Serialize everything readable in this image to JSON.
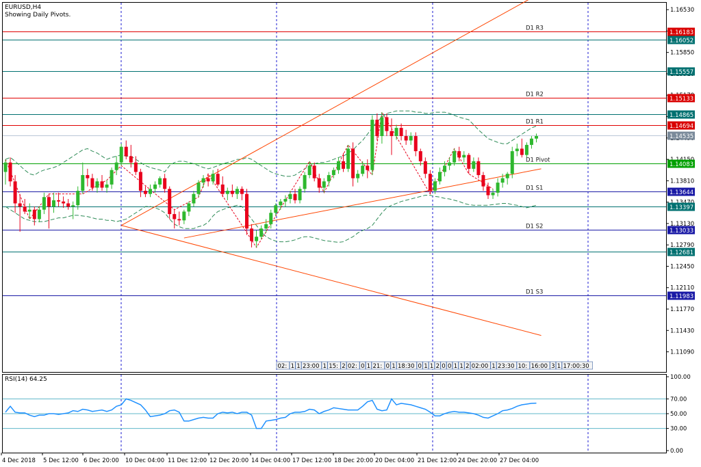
{
  "header": {
    "symbol": "EURUSD,H4",
    "subtitle": "Showing Daily Pivots."
  },
  "rsi_header": "RSI(14) 64.25",
  "colors": {
    "bull": "#2eb82e",
    "bear": "#e8001c",
    "resistance_line": "#e00000",
    "support_line": "#1a1aa6",
    "pivot_line": "#00a000",
    "mid_line": "#007070",
    "rsi_line": "#1e90ff",
    "trend_line": "#ff4500",
    "grid": "#1a1ad0"
  },
  "chart_data": [
    {
      "type": "candlestick",
      "title": "EURUSD,H4",
      "ylim": [
        1.1077,
        1.1664
      ],
      "y_ticks": [
        "1.16530",
        "1.16190",
        "1.15850",
        "1.15510",
        "1.15170",
        "1.14830",
        "1.14490",
        "1.14150",
        "1.13810",
        "1.13470",
        "1.13130",
        "1.12790",
        "1.12450",
        "1.12110",
        "1.11770",
        "1.11430",
        "1.11090"
      ],
      "x_ticks": [
        "4 Dec 2018",
        "5 Dec 12:00",
        "6 Dec 20:00",
        "10 Dec 04:00",
        "11 Dec 12:00",
        "12 Dec 20:00",
        "14 Dec 04:00",
        "17 Dec 12:00",
        "18 Dec 20:00",
        "20 Dec 04:00",
        "21 Dec 12:00",
        "24 Dec 20:00",
        "27 Dec 04:00"
      ],
      "pivot_levels": [
        {
          "label": "D1 R3",
          "value": 1.16183,
          "tag": "1.16183",
          "kind": "resistance"
        },
        {
          "label": "",
          "value": 1.16052,
          "tag": "1.16052",
          "kind": "mid"
        },
        {
          "label": "",
          "value": 1.15557,
          "tag": "1.15557",
          "kind": "mid"
        },
        {
          "label": "D1 R2",
          "value": 1.15133,
          "tag": "1.15133",
          "kind": "resistance"
        },
        {
          "label": "",
          "value": 1.14865,
          "tag": "1.14865",
          "kind": "mid"
        },
        {
          "label": "D1 R1",
          "value": 1.14694,
          "tag": "1.14694",
          "kind": "resistance"
        },
        {
          "label": "",
          "value": 1.14535,
          "tag": "1.14535",
          "kind": "price"
        },
        {
          "label": "D1 Pivot",
          "value": 1.14083,
          "tag": "1.14083",
          "kind": "pivot"
        },
        {
          "label": "D1 S1",
          "value": 1.13644,
          "tag": "1.13644",
          "kind": "support"
        },
        {
          "label": "",
          "value": 1.13397,
          "tag": "1.13397",
          "kind": "mid"
        },
        {
          "label": "D1 S2",
          "value": 1.13033,
          "tag": "1.13033",
          "kind": "support"
        },
        {
          "label": "",
          "value": 1.12681,
          "tag": "1.12681",
          "kind": "mid"
        },
        {
          "label": "D1 S3",
          "value": 1.11983,
          "tag": "1.11983",
          "kind": "support"
        }
      ],
      "ohlc": [
        [
          1.1395,
          1.1415,
          1.1375,
          1.141
        ],
        [
          1.141,
          1.1418,
          1.1372,
          1.138
        ],
        [
          1.138,
          1.139,
          1.133,
          1.1345
        ],
        [
          1.1345,
          1.136,
          1.13,
          1.134
        ],
        [
          1.134,
          1.1352,
          1.1328,
          1.1332
        ],
        [
          1.1332,
          1.1345,
          1.132,
          1.1335
        ],
        [
          1.1335,
          1.134,
          1.131,
          1.132
        ],
        [
          1.132,
          1.134,
          1.1315,
          1.1335
        ],
        [
          1.1335,
          1.1362,
          1.1328,
          1.1355
        ],
        [
          1.1355,
          1.136,
          1.1305,
          1.134
        ],
        [
          1.134,
          1.1362,
          1.133,
          1.135
        ],
        [
          1.135,
          1.1362,
          1.134,
          1.1348
        ],
        [
          1.1348,
          1.1356,
          1.1338,
          1.1345
        ],
        [
          1.1345,
          1.1352,
          1.1335,
          1.134
        ],
        [
          1.134,
          1.1348,
          1.132,
          1.1342
        ],
        [
          1.1342,
          1.1372,
          1.1335,
          1.1365
        ],
        [
          1.1365,
          1.141,
          1.136,
          1.139
        ],
        [
          1.139,
          1.14,
          1.1372,
          1.1385
        ],
        [
          1.1385,
          1.1392,
          1.1365,
          1.137
        ],
        [
          1.137,
          1.1385,
          1.1362,
          1.138
        ],
        [
          1.138,
          1.139,
          1.1365,
          1.137
        ],
        [
          1.137,
          1.1382,
          1.1362,
          1.1375
        ],
        [
          1.1375,
          1.1402,
          1.1368,
          1.1398
        ],
        [
          1.1398,
          1.142,
          1.139,
          1.141
        ],
        [
          1.141,
          1.144,
          1.1405,
          1.1435
        ],
        [
          1.1435,
          1.1445,
          1.1415,
          1.142
        ],
        [
          1.142,
          1.1438,
          1.1402,
          1.141
        ],
        [
          1.141,
          1.142,
          1.139,
          1.1395
        ],
        [
          1.1395,
          1.14,
          1.1355,
          1.1365
        ],
        [
          1.1365,
          1.1372,
          1.1355,
          1.136
        ],
        [
          1.136,
          1.1375,
          1.1355,
          1.1368
        ],
        [
          1.1368,
          1.138,
          1.1362,
          1.1375
        ],
        [
          1.1375,
          1.1388,
          1.137,
          1.1385
        ],
        [
          1.1385,
          1.1392,
          1.1362,
          1.1368
        ],
        [
          1.1368,
          1.1372,
          1.132,
          1.1328
        ],
        [
          1.1328,
          1.1335,
          1.1305,
          1.132
        ],
        [
          1.132,
          1.1332,
          1.131,
          1.1318
        ],
        [
          1.1318,
          1.1335,
          1.1312,
          1.1332
        ],
        [
          1.1332,
          1.1348,
          1.1325,
          1.1345
        ],
        [
          1.1345,
          1.1365,
          1.134,
          1.136
        ],
        [
          1.136,
          1.1382,
          1.1355,
          1.1378
        ],
        [
          1.1378,
          1.139,
          1.137,
          1.1385
        ],
        [
          1.1385,
          1.1392,
          1.1372,
          1.138
        ],
        [
          1.138,
          1.1398,
          1.1375,
          1.1392
        ],
        [
          1.1392,
          1.14,
          1.1372,
          1.1375
        ],
        [
          1.1375,
          1.1388,
          1.1355,
          1.136
        ],
        [
          1.136,
          1.137,
          1.135,
          1.1365
        ],
        [
          1.1365,
          1.1375,
          1.1355,
          1.136
        ],
        [
          1.136,
          1.1372,
          1.1352,
          1.1368
        ],
        [
          1.1368,
          1.1372,
          1.135,
          1.136
        ],
        [
          1.136,
          1.1368,
          1.1295,
          1.1305
        ],
        [
          1.1305,
          1.1312,
          1.1275,
          1.1285
        ],
        [
          1.1285,
          1.1302,
          1.1275,
          1.1292
        ],
        [
          1.1292,
          1.131,
          1.1288,
          1.1305
        ],
        [
          1.1305,
          1.132,
          1.1298,
          1.1312
        ],
        [
          1.1312,
          1.1335,
          1.1305,
          1.133
        ],
        [
          1.133,
          1.1345,
          1.1325,
          1.1342
        ],
        [
          1.1342,
          1.1352,
          1.1335,
          1.1348
        ],
        [
          1.1348,
          1.1358,
          1.134,
          1.1352
        ],
        [
          1.1352,
          1.1365,
          1.1345,
          1.136
        ],
        [
          1.136,
          1.1368,
          1.1345,
          1.135
        ],
        [
          1.135,
          1.1372,
          1.1345,
          1.1368
        ],
        [
          1.1368,
          1.1395,
          1.1362,
          1.139
        ],
        [
          1.139,
          1.1412,
          1.1385,
          1.1405
        ],
        [
          1.1405,
          1.141,
          1.138,
          1.1385
        ],
        [
          1.1385,
          1.1392,
          1.1362,
          1.137
        ],
        [
          1.137,
          1.1385,
          1.1362,
          1.138
        ],
        [
          1.138,
          1.1395,
          1.1372,
          1.139
        ],
        [
          1.139,
          1.1402,
          1.1385,
          1.1398
        ],
        [
          1.1398,
          1.1418,
          1.1392,
          1.1412
        ],
        [
          1.1412,
          1.1425,
          1.1395,
          1.14
        ],
        [
          1.14,
          1.1438,
          1.1395,
          1.1432
        ],
        [
          1.1432,
          1.1442,
          1.1372,
          1.1385
        ],
        [
          1.1385,
          1.1398,
          1.1378,
          1.1392
        ],
        [
          1.1392,
          1.1412,
          1.1388,
          1.1405
        ],
        [
          1.1405,
          1.1415,
          1.1385,
          1.1398
        ],
        [
          1.1398,
          1.1485,
          1.139,
          1.1478
        ],
        [
          1.1478,
          1.1488,
          1.1445,
          1.1452
        ],
        [
          1.1452,
          1.149,
          1.144,
          1.1482
        ],
        [
          1.1482,
          1.1488,
          1.1452,
          1.146
        ],
        [
          1.146,
          1.148,
          1.1422,
          1.1452
        ],
        [
          1.1452,
          1.147,
          1.1446,
          1.1465
        ],
        [
          1.1465,
          1.1472,
          1.1445,
          1.1452
        ],
        [
          1.1452,
          1.1462,
          1.1438,
          1.1445
        ],
        [
          1.1445,
          1.1458,
          1.1438,
          1.1452
        ],
        [
          1.1452,
          1.1458,
          1.142,
          1.1428
        ],
        [
          1.1428,
          1.1432,
          1.1405,
          1.1412
        ],
        [
          1.1412,
          1.1418,
          1.1385,
          1.1392
        ],
        [
          1.1392,
          1.1398,
          1.136,
          1.1365
        ],
        [
          1.1365,
          1.1385,
          1.136,
          1.138
        ],
        [
          1.138,
          1.1402,
          1.1375,
          1.1395
        ],
        [
          1.1395,
          1.1412,
          1.1388,
          1.1405
        ],
        [
          1.1405,
          1.1418,
          1.1398,
          1.141
        ],
        [
          1.141,
          1.1432,
          1.1405,
          1.1428
        ],
        [
          1.1428,
          1.1435,
          1.1412,
          1.1418
        ],
        [
          1.1418,
          1.1428,
          1.141,
          1.1422
        ],
        [
          1.1422,
          1.1425,
          1.1392,
          1.14
        ],
        [
          1.14,
          1.1418,
          1.1395,
          1.1412
        ],
        [
          1.1412,
          1.1418,
          1.1385,
          1.139
        ],
        [
          1.139,
          1.1395,
          1.1365,
          1.1372
        ],
        [
          1.1372,
          1.1378,
          1.1352,
          1.1358
        ],
        [
          1.1358,
          1.1368,
          1.1352,
          1.1362
        ],
        [
          1.1362,
          1.1385,
          1.1356,
          1.1378
        ],
        [
          1.1378,
          1.1392,
          1.137,
          1.1385
        ],
        [
          1.1385,
          1.1395,
          1.1375,
          1.1392
        ],
        [
          1.1392,
          1.1435,
          1.1385,
          1.1428
        ],
        [
          1.1428,
          1.144,
          1.142,
          1.1432
        ],
        [
          1.1432,
          1.1448,
          1.1418,
          1.1422
        ],
        [
          1.1422,
          1.1442,
          1.1418,
          1.1438
        ],
        [
          1.1438,
          1.1452,
          1.1432,
          1.1448
        ],
        [
          1.1448,
          1.1456,
          1.1442,
          1.1452
        ]
      ],
      "bollinger_upper": [
        1.1415,
        1.1418,
        1.1412,
        1.1405,
        1.1398,
        1.1392,
        1.139,
        1.1395,
        1.1398,
        1.14,
        1.1402,
        1.1405,
        1.141,
        1.1415,
        1.142,
        1.1425,
        1.143,
        1.1432,
        1.1428,
        1.1425,
        1.142,
        1.1415,
        1.1418,
        1.142,
        1.1422,
        1.142,
        1.142,
        1.1415,
        1.141,
        1.1405,
        1.1402,
        1.14,
        1.1398,
        1.1395,
        1.1405,
        1.141,
        1.1412,
        1.1412,
        1.141,
        1.1408,
        1.1405,
        1.1402,
        1.14,
        1.1402,
        1.1405,
        1.1408,
        1.141,
        1.1412,
        1.1415,
        1.1415,
        1.1418,
        1.1415,
        1.141,
        1.1405,
        1.14,
        1.1395,
        1.1392,
        1.139,
        1.1388,
        1.1388,
        1.139,
        1.1395,
        1.14,
        1.1405,
        1.1408,
        1.141,
        1.141,
        1.1412,
        1.1415,
        1.1418,
        1.142,
        1.1425,
        1.143,
        1.1438,
        1.1445,
        1.1455,
        1.1465,
        1.1475,
        1.1482,
        1.1488,
        1.149,
        1.1492,
        1.1492,
        1.1492,
        1.1492,
        1.149,
        1.149,
        1.1488,
        1.1488,
        1.149,
        1.149,
        1.149,
        1.1488,
        1.1485,
        1.1482,
        1.148,
        1.1478,
        1.147,
        1.1462,
        1.1455,
        1.1448,
        1.1445,
        1.1442,
        1.144,
        1.144,
        1.1445,
        1.145,
        1.1455,
        1.146,
        1.1465,
        1.1468
      ],
      "bollinger_lower": [
        1.134,
        1.1335,
        1.133,
        1.1325,
        1.132,
        1.1318,
        1.1316,
        1.1316,
        1.1316,
        1.1318,
        1.132,
        1.1322,
        1.1322,
        1.1324,
        1.1326,
        1.1326,
        1.1325,
        1.1324,
        1.1322,
        1.132,
        1.132,
        1.1318,
        1.1318,
        1.1316,
        1.1318,
        1.132,
        1.1325,
        1.133,
        1.1335,
        1.134,
        1.134,
        1.1338,
        1.1335,
        1.133,
        1.132,
        1.1312,
        1.1308,
        1.1305,
        1.1305,
        1.1305,
        1.1308,
        1.131,
        1.1315,
        1.1325,
        1.1332,
        1.1335,
        1.1338,
        1.134,
        1.1342,
        1.134,
        1.133,
        1.132,
        1.131,
        1.13,
        1.1292,
        1.1288,
        1.1285,
        1.1284,
        1.1284,
        1.1285,
        1.1287,
        1.129,
        1.1292,
        1.1292,
        1.129,
        1.1288,
        1.1286,
        1.1285,
        1.1284,
        1.1283,
        1.1284,
        1.1288,
        1.1292,
        1.1298,
        1.1302,
        1.1305,
        1.131,
        1.132,
        1.133,
        1.1338,
        1.1342,
        1.1345,
        1.1348,
        1.135,
        1.1352,
        1.1354,
        1.1356,
        1.1358,
        1.1358,
        1.1356,
        1.1355,
        1.1353,
        1.1352,
        1.135,
        1.1348,
        1.1345,
        1.1343,
        1.1342,
        1.1342,
        1.1342,
        1.1342,
        1.1343,
        1.1344,
        1.1345,
        1.1345,
        1.1343,
        1.1342,
        1.134,
        1.1338,
        1.134,
        1.1342
      ],
      "trend_lines": [
        {
          "from": [
            24,
            1.131
          ],
          "to": [
            111,
            1.168
          ]
        },
        {
          "from": [
            24,
            1.131
          ],
          "to": [
            111,
            1.1135
          ]
        },
        {
          "from": [
            37,
            1.129
          ],
          "to": [
            111,
            1.14
          ]
        }
      ],
      "time_labels": [
        "02:",
        "1",
        "1",
        "23:00",
        "1",
        "15:",
        "2",
        "02:",
        "0",
        "1",
        "21:",
        "0",
        "1",
        "18:30",
        "0",
        "1",
        "1",
        "2",
        "0",
        "0",
        "1",
        "1",
        "2",
        "02:00",
        "1",
        "23:30",
        "10:",
        "16:00",
        "3",
        "1",
        "17:00:30"
      ]
    },
    {
      "type": "line",
      "title": "RSI(14) 64.25",
      "ylim": [
        0,
        100
      ],
      "y_ticks": [
        "100.00",
        "70.00",
        "50.00",
        "30.00",
        "0.00"
      ],
      "levels": [
        70,
        50,
        30
      ],
      "series": [
        {
          "values": [
            52,
            60,
            52,
            51,
            51,
            48,
            46,
            48,
            48,
            50,
            50,
            49,
            50,
            51,
            54,
            53,
            56,
            55,
            53,
            54,
            55,
            53,
            55,
            60,
            62,
            70,
            68,
            65,
            62,
            55,
            46,
            47,
            48,
            50,
            54,
            55,
            52,
            40,
            40,
            42,
            44,
            45,
            44,
            44,
            50,
            52,
            51,
            52,
            50,
            52,
            52,
            48,
            30,
            30,
            40,
            41,
            42,
            44,
            45,
            50,
            52,
            52,
            53,
            56,
            55,
            50,
            53,
            55,
            58,
            57,
            56,
            55,
            55,
            55,
            60,
            66,
            68,
            56,
            54,
            55,
            70,
            62,
            64,
            63,
            62,
            60,
            58,
            56,
            52,
            47,
            47,
            50,
            52,
            53,
            52,
            52,
            51,
            50,
            48,
            45,
            44,
            47,
            50,
            54,
            55,
            57,
            60,
            62,
            63,
            64,
            64.25
          ]
        }
      ]
    }
  ]
}
